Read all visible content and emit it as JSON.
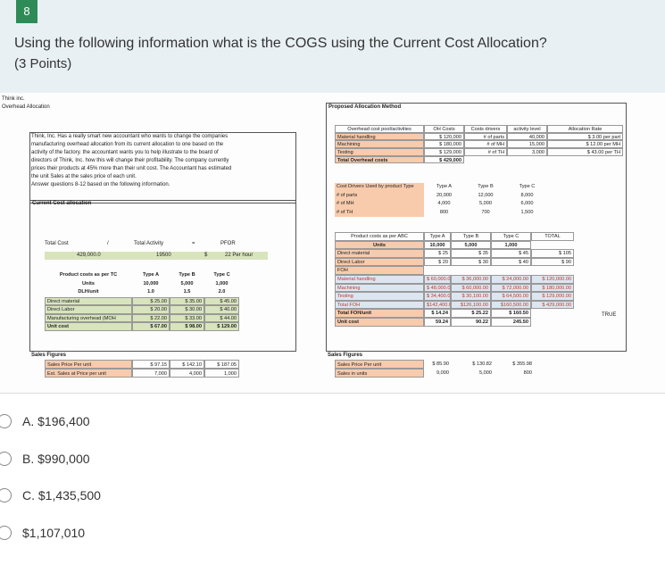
{
  "header": {
    "number": "8",
    "question": "Using the following information what is the COGS using the Current Cost Allocation?",
    "points": "(3 Points)"
  },
  "sheet": {
    "company": "Think inc.",
    "subtitle": "Overhead Allocation",
    "description": [
      "Think, Inc. Has a really smart new accountant who wants to change the companies",
      "manufacturing overhead allocation from its current allocation to one based on the",
      "activity of the factory.  the accountant wants you to help illustrate to the board of",
      "directors of Think, Inc. how this will change their profitability.  The company currently",
      "prices their products at 45% more than their unit cost.  The Accountant has estimated",
      "the unit Sales at the sales price of each unit.",
      "Answer questions 8-12 based on the following information."
    ],
    "current": {
      "title": "Current Cost allocation",
      "formula": [
        [
          "Total Cost",
          "/",
          "Total Activity",
          "=",
          "PFOR"
        ],
        [
          "429,000.0",
          "19500",
          "$",
          "22  Per hour"
        ]
      ],
      "product_costs": [
        [
          "Product costs as per TC",
          "Type A",
          "Type B",
          "Type C"
        ],
        [
          "Units",
          "10,000",
          "5,000",
          "1,000"
        ],
        [
          "DLH/unit",
          "1.0",
          "1.5",
          "2.0"
        ],
        [
          "Direct material",
          "$  25.00",
          "$  35.00",
          "$  45.00"
        ],
        [
          "Direct Labor",
          "$  20.00",
          "$  30.00",
          "$  40.00"
        ],
        [
          "Manufacturing overhead (MOH",
          "$  22.00",
          "$  33.00",
          "$  44.00"
        ],
        [
          "Unit cost",
          "$  67.00",
          "$  98.00",
          "$  129.00"
        ]
      ],
      "sales_title": "Sales Figures",
      "sales": [
        [
          "Sales Price Per unit",
          "$ 97.15",
          "$ 142.10",
          "$ 187.05"
        ],
        [
          "Est. Sales at Price per unit",
          "7,000",
          "4,000",
          "1,000"
        ]
      ]
    },
    "proposed": {
      "title": "Proposed Allocation Method",
      "pools": [
        [
          "Overhead cost pool/activities",
          "OH Costs",
          "Costs drivers",
          "activity level",
          "Allocation Rate"
        ],
        [
          "Material handling",
          "$  120,000",
          "# of parts",
          "40,000",
          "$  3.00  per part"
        ],
        [
          "Machining",
          "$  180,000",
          "# of MH",
          "15,000",
          "$  12.00  per MH"
        ],
        [
          "Testing",
          "$  129,000",
          "# of TH",
          "3,000",
          "$  43.00  per TH"
        ],
        [
          "Total Overhead costs",
          "$  429,000"
        ]
      ],
      "drivers": [
        [
          "Cost Drivers Used by product Type",
          "Type A",
          "Type B",
          "Type C"
        ],
        [
          "# of parts",
          "20,000",
          "12,000",
          "8,000"
        ],
        [
          "# of MH",
          "4,000",
          "5,000",
          "6,000"
        ],
        [
          "# of TH",
          "800",
          "700",
          "1,500"
        ]
      ],
      "abc": [
        [
          "Product costs as per ABC",
          "Type A",
          "Type B",
          "Type C",
          "TOTAL"
        ],
        [
          "Units",
          "10,000",
          "5,000",
          "1,000"
        ],
        [
          "Direct material",
          "$  25",
          "$  35",
          "$  45",
          "$  105"
        ],
        [
          "Direct Labor",
          "$  20",
          "$  30",
          "$  40",
          "$  90"
        ],
        [
          "FOH"
        ],
        [
          "Material handling",
          "$ 60,000.00",
          "$ 36,000.00",
          "$ 24,000.00",
          "$ 120,000.00"
        ],
        [
          "Machining",
          "$ 48,000.00",
          "$ 60,000.00",
          "$ 72,000.00",
          "$ 180,000.00"
        ],
        [
          "Testing",
          "$ 34,400.00",
          "$ 30,100.00",
          "$ 64,500.00",
          "$ 129,000.00"
        ],
        [
          "Total FOH",
          "$142,400.00",
          "$126,100.00",
          "$160,500.00",
          "$ 429,000.00"
        ],
        [
          "Total FOH/unit",
          "$  14.24",
          "$  25.22",
          "$  160.50"
        ],
        [
          "Unit cost",
          "59.24",
          "90.22",
          "245.50"
        ]
      ],
      "check": "TRUE",
      "sales_title": "Sales Figures",
      "sales": [
        [
          "Sales Price Per unit",
          "$  85.90",
          "$  130.82",
          "$  355.98"
        ],
        [
          "Sales in units",
          "9,000",
          "5,000",
          "800"
        ]
      ]
    }
  },
  "options": [
    "A. $196,400",
    "B. $990,000",
    "C. $1,435,500",
    "$1,107,010"
  ]
}
